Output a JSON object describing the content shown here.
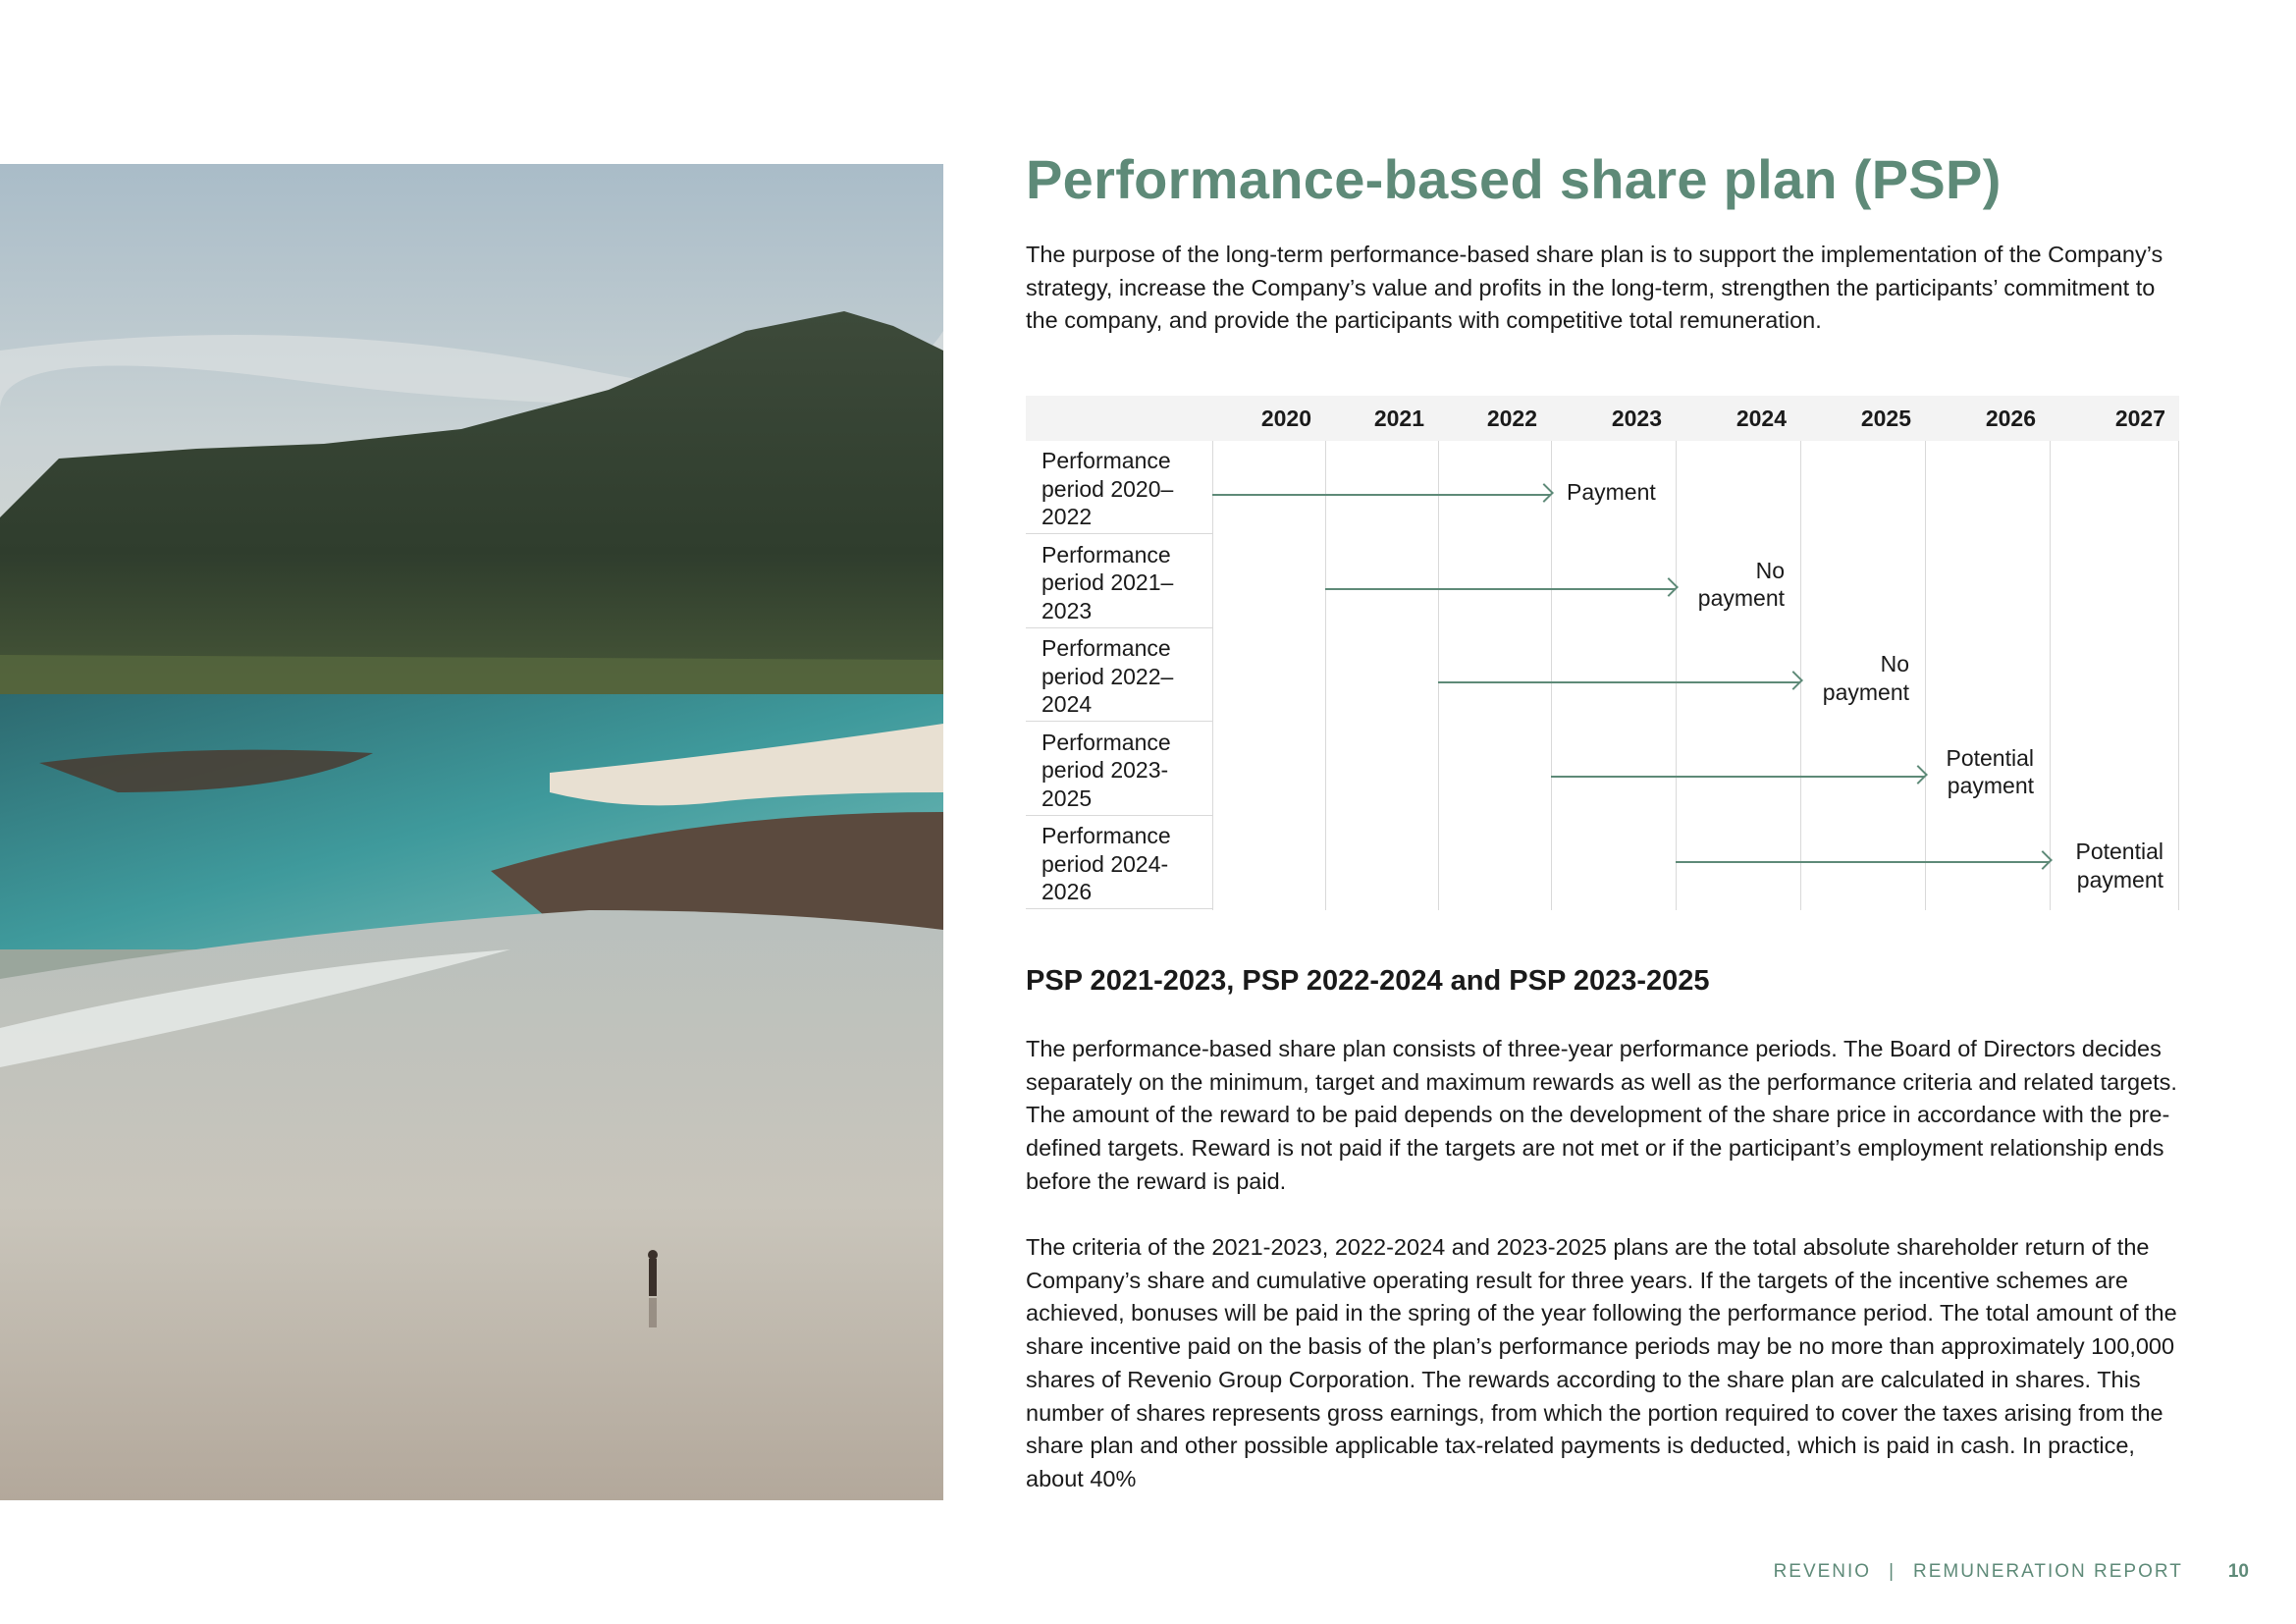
{
  "title": "Performance-based share plan (PSP)",
  "intro": "The purpose of the long-term performance-based share plan is to support the implementation of the Company’s strategy, increase the Company’s value and profits in the long-term, strengthen the participants’ commitment to the company, and provide the participants with competitive total remuneration.",
  "timeline": {
    "years": [
      "2020",
      "2021",
      "2022",
      "2023",
      "2024",
      "2025",
      "2026",
      "2027"
    ],
    "rows": [
      {
        "label": "Performance period 2020–2022",
        "start": "2020",
        "end": "2023",
        "outcome": "Payment"
      },
      {
        "label": "Performance period 2021–2023",
        "start": "2021",
        "end": "2024",
        "outcome": "No\npayment"
      },
      {
        "label": "Performance period 2022–2024",
        "start": "2022",
        "end": "2025",
        "outcome": "No\npayment"
      },
      {
        "label": "Performance period 2023-2025",
        "start": "2023",
        "end": "2026",
        "outcome": "Potential\npayment"
      },
      {
        "label": "Performance period 2024-2026",
        "start": "2024",
        "end": "2027",
        "outcome": "Potential\npayment"
      }
    ],
    "accent_color": "#5e8a78"
  },
  "subheading": "PSP 2021-2023, PSP 2022-2024 and PSP 2023-2025",
  "paragraph1": "The performance-based share plan consists of three-year performance periods. The Board of Directors decides separately on the minimum, target and maximum rewards as well as the per­formance criteria and related targets. The amount of the reward to be paid depends on the devel­opment of the share price in accordance with the pre-defined targets. Reward is not paid if the targets are not met or if the participant’s employment relationship ends before the reward is paid.",
  "paragraph2": "The criteria of the 2021-2023, 2022-2024 and 2023-2025 plans are the total absolute shareholder return of the Company’s share and cumulative operating result for three years. If the targets of the incentive schemes are achieved, bonuses will be paid in the spring of the year following the perfor­mance period. The total amount of the share incentive paid on the basis of the plan’s performance periods may be no more than approximately 100,000 shares of Revenio Group Corporation. The re­wards according to the share plan are calculated in shares. This number of shares represents gross earnings, from which the portion required to cover the taxes arising from the share plan and other possible applicable tax-related payments is deducted, which is paid in cash. In practice, about 40%",
  "footer": {
    "company": "REVENIO",
    "separator": "|",
    "report": "REMUNERATION REPORT",
    "page": "10"
  }
}
